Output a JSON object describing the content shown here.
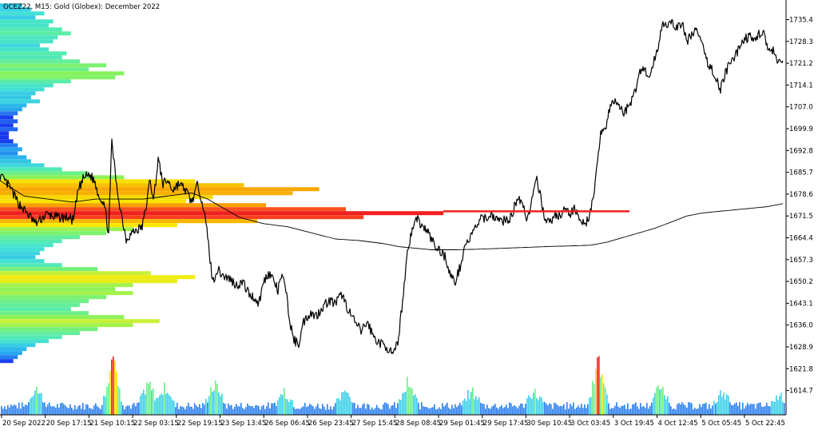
{
  "chart_data": {
    "type": "line",
    "title": "GCEZ22, M15:  Gold (Globex): December 2022",
    "xlabel": "",
    "ylabel": "",
    "ylim": [
      1607.5,
      1742.0
    ],
    "y_ticks": [
      1735.4,
      1728.3,
      1721.2,
      1714.1,
      1707.0,
      1699.9,
      1692.8,
      1685.7,
      1678.6,
      1671.5,
      1664.4,
      1657.3,
      1650.2,
      1643.1,
      1636.0,
      1628.9,
      1621.8,
      1614.7
    ],
    "x_ticks": [
      "20 Sep 2022",
      "20 Sep 17:15",
      "21 Sep 10:15",
      "22 Sep 03:15",
      "22 Sep 19:15",
      "23 Sep 13:45",
      "26 Sep 06:45",
      "26 Sep 23:45",
      "27 Sep 15:45",
      "28 Sep 08:45",
      "29 Sep 01:45",
      "29 Sep 17:45",
      "30 Sep 10:45",
      "3 Oct 03:45",
      "3 Oct 19:45",
      "4 Oct 12:45",
      "5 Oct 05:45",
      "5 Oct 22:45"
    ],
    "grid": false,
    "series": [
      {
        "role": "price",
        "color": "#000000",
        "anchors": [
          [
            0,
            1684.5
          ],
          [
            12,
            1681
          ],
          [
            22,
            1676
          ],
          [
            35,
            1672
          ],
          [
            45,
            1669
          ],
          [
            58,
            1672
          ],
          [
            72,
            1671
          ],
          [
            85,
            1671
          ],
          [
            92,
            1670
          ],
          [
            98,
            1680
          ],
          [
            105,
            1684
          ],
          [
            112,
            1685
          ],
          [
            118,
            1683
          ],
          [
            124,
            1678
          ],
          [
            130,
            1676
          ],
          [
            136,
            1666
          ],
          [
            140,
            1696
          ],
          [
            146,
            1681
          ],
          [
            152,
            1672
          ],
          [
            158,
            1664
          ],
          [
            165,
            1666
          ],
          [
            172,
            1667
          ],
          [
            178,
            1668
          ],
          [
            184,
            1676
          ],
          [
            188,
            1684
          ],
          [
            192,
            1676
          ],
          [
            198,
            1690
          ],
          [
            204,
            1682
          ],
          [
            210,
            1683
          ],
          [
            216,
            1680
          ],
          [
            224,
            1682
          ],
          [
            232,
            1680
          ],
          [
            240,
            1676
          ],
          [
            248,
            1682
          ],
          [
            254,
            1675
          ],
          [
            260,
            1665
          ],
          [
            266,
            1650
          ],
          [
            272,
            1654
          ],
          [
            280,
            1652
          ],
          [
            288,
            1651
          ],
          [
            296,
            1649
          ],
          [
            304,
            1650
          ],
          [
            312,
            1646
          ],
          [
            318,
            1645
          ],
          [
            324,
            1643
          ],
          [
            330,
            1650
          ],
          [
            336,
            1653
          ],
          [
            342,
            1651
          ],
          [
            348,
            1647
          ],
          [
            352,
            1652
          ],
          [
            358,
            1648
          ],
          [
            362,
            1638
          ],
          [
            368,
            1631
          ],
          [
            374,
            1630
          ],
          [
            380,
            1637
          ],
          [
            388,
            1640
          ],
          [
            396,
            1639
          ],
          [
            404,
            1642
          ],
          [
            412,
            1644
          ],
          [
            420,
            1643
          ],
          [
            428,
            1646
          ],
          [
            436,
            1641
          ],
          [
            444,
            1637
          ],
          [
            452,
            1634
          ],
          [
            460,
            1637
          ],
          [
            468,
            1632
          ],
          [
            476,
            1630
          ],
          [
            484,
            1629
          ],
          [
            492,
            1626
          ],
          [
            498,
            1630
          ],
          [
            504,
            1644
          ],
          [
            510,
            1660
          ],
          [
            516,
            1667
          ],
          [
            522,
            1671
          ],
          [
            528,
            1668
          ],
          [
            534,
            1667
          ],
          [
            540,
            1664
          ],
          [
            546,
            1661
          ],
          [
            552,
            1660
          ],
          [
            558,
            1658
          ],
          [
            564,
            1652
          ],
          [
            570,
            1650
          ],
          [
            576,
            1655
          ],
          [
            582,
            1662
          ],
          [
            588,
            1664
          ],
          [
            594,
            1667
          ],
          [
            600,
            1670
          ],
          [
            608,
            1671
          ],
          [
            616,
            1672
          ],
          [
            624,
            1670
          ],
          [
            632,
            1670
          ],
          [
            640,
            1671
          ],
          [
            648,
            1678
          ],
          [
            654,
            1676
          ],
          [
            660,
            1670
          ],
          [
            666,
            1677
          ],
          [
            672,
            1683
          ],
          [
            678,
            1676
          ],
          [
            684,
            1669
          ],
          [
            690,
            1670
          ],
          [
            696,
            1672
          ],
          [
            702,
            1671
          ],
          [
            708,
            1674
          ],
          [
            714,
            1672
          ],
          [
            720,
            1674
          ],
          [
            726,
            1671
          ],
          [
            732,
            1668
          ],
          [
            738,
            1672
          ],
          [
            744,
            1678
          ],
          [
            748,
            1690
          ],
          [
            752,
            1699
          ],
          [
            758,
            1700
          ],
          [
            764,
            1707
          ],
          [
            770,
            1709
          ],
          [
            776,
            1707
          ],
          [
            782,
            1705
          ],
          [
            788,
            1708
          ],
          [
            794,
            1711
          ],
          [
            800,
            1718
          ],
          [
            806,
            1720
          ],
          [
            812,
            1716
          ],
          [
            818,
            1721
          ],
          [
            824,
            1727
          ],
          [
            830,
            1735
          ],
          [
            836,
            1733
          ],
          [
            842,
            1734
          ],
          [
            848,
            1733
          ],
          [
            854,
            1734
          ],
          [
            860,
            1728
          ],
          [
            866,
            1731
          ],
          [
            872,
            1732
          ],
          [
            878,
            1728
          ],
          [
            884,
            1722
          ],
          [
            890,
            1720
          ],
          [
            896,
            1716
          ],
          [
            902,
            1713
          ],
          [
            908,
            1718
          ],
          [
            914,
            1721
          ],
          [
            920,
            1723
          ],
          [
            926,
            1727
          ],
          [
            932,
            1729
          ],
          [
            938,
            1730
          ],
          [
            944,
            1728
          ],
          [
            950,
            1731
          ],
          [
            956,
            1731
          ],
          [
            962,
            1725
          ],
          [
            968,
            1725
          ],
          [
            974,
            1721
          ],
          [
            980,
            1722
          ]
        ]
      },
      {
        "role": "moving-average",
        "color": "#000000",
        "anchors": [
          [
            0,
            1683
          ],
          [
            30,
            1678
          ],
          [
            60,
            1677
          ],
          [
            90,
            1676
          ],
          [
            120,
            1677
          ],
          [
            150,
            1677
          ],
          [
            180,
            1677
          ],
          [
            210,
            1678
          ],
          [
            240,
            1679
          ],
          [
            260,
            1677
          ],
          [
            280,
            1674
          ],
          [
            300,
            1671
          ],
          [
            330,
            1669
          ],
          [
            360,
            1668
          ],
          [
            390,
            1666
          ],
          [
            420,
            1664
          ],
          [
            450,
            1663.5
          ],
          [
            480,
            1662.5
          ],
          [
            500,
            1661.5
          ],
          [
            520,
            1661
          ],
          [
            540,
            1660.5
          ],
          [
            570,
            1660.5
          ],
          [
            600,
            1660.7
          ],
          [
            630,
            1661
          ],
          [
            660,
            1661.3
          ],
          [
            690,
            1661.6
          ],
          [
            720,
            1661.8
          ],
          [
            740,
            1662
          ],
          [
            760,
            1663
          ],
          [
            780,
            1664.5
          ],
          [
            800,
            1666
          ],
          [
            820,
            1667.5
          ],
          [
            840,
            1669.5
          ],
          [
            860,
            1671.5
          ],
          [
            880,
            1672.5
          ],
          [
            900,
            1673
          ],
          [
            920,
            1673.5
          ],
          [
            940,
            1674
          ],
          [
            960,
            1674.5
          ],
          [
            980,
            1675.5
          ]
        ]
      }
    ],
    "volume_profile": {
      "poc": 1673.0,
      "value_area": [
        1635.5,
        1680.0
      ],
      "bins": [
        [
          1740.0,
          5,
          "#34c8e4"
        ],
        [
          1738.7,
          7,
          "#3ad0e8"
        ],
        [
          1737.4,
          10,
          "#42e0d4"
        ],
        [
          1736.1,
          8,
          "#38cce6"
        ],
        [
          1734.8,
          12,
          "#48e4c8"
        ],
        [
          1733.5,
          11,
          "#44e2cc"
        ],
        [
          1732.2,
          14,
          "#54eab4"
        ],
        [
          1730.9,
          16,
          "#5aeca6"
        ],
        [
          1729.6,
          13,
          "#4ee6c0"
        ],
        [
          1728.3,
          12,
          "#48e4c8"
        ],
        [
          1727.0,
          9,
          "#3ed6dc"
        ],
        [
          1725.7,
          11,
          "#44e2cc"
        ],
        [
          1724.4,
          15,
          "#56ebae"
        ],
        [
          1723.1,
          14,
          "#52e8b8"
        ],
        [
          1721.8,
          18,
          "#62ee9a"
        ],
        [
          1720.5,
          24,
          "#7cf270"
        ],
        [
          1719.2,
          20,
          "#6cf086"
        ],
        [
          1717.9,
          28,
          "#86f25e"
        ],
        [
          1716.6,
          26,
          "#82f266"
        ],
        [
          1715.3,
          16,
          "#5aeca6"
        ],
        [
          1714.0,
          12,
          "#48e4c8"
        ],
        [
          1712.7,
          10,
          "#42e0d4"
        ],
        [
          1711.4,
          8,
          "#38cce6"
        ],
        [
          1710.1,
          7,
          "#34c8e4"
        ],
        [
          1708.8,
          9,
          "#3cd4e0"
        ],
        [
          1707.5,
          6,
          "#2cb8ea"
        ],
        [
          1706.2,
          5,
          "#2aa8ee"
        ],
        [
          1704.9,
          4,
          "#2878f0"
        ],
        [
          1703.6,
          3,
          "#1a40ee"
        ],
        [
          1702.3,
          4,
          "#2060f0"
        ],
        [
          1701.0,
          3,
          "#1a40ee"
        ],
        [
          1699.7,
          4,
          "#2268f0"
        ],
        [
          1698.4,
          2,
          "#1a3aee"
        ],
        [
          1697.1,
          2,
          "#1838ee"
        ],
        [
          1695.8,
          3,
          "#1a40ee"
        ],
        [
          1694.5,
          4,
          "#2480f0"
        ],
        [
          1693.2,
          5,
          "#2aa4ee"
        ],
        [
          1691.9,
          4,
          "#2490f0"
        ],
        [
          1690.6,
          6,
          "#2eb4ea"
        ],
        [
          1689.3,
          7,
          "#34c4e4"
        ],
        [
          1688.0,
          10,
          "#3ed8dc"
        ],
        [
          1686.7,
          14,
          "#52e8b8"
        ],
        [
          1685.4,
          20,
          "#6cf086"
        ],
        [
          1684.1,
          28,
          "#8ef258"
        ],
        [
          1682.8,
          44,
          "#f8e000"
        ],
        [
          1681.5,
          55,
          "#f8c000"
        ],
        [
          1680.2,
          72,
          "#f8a800"
        ],
        [
          1678.9,
          66,
          "#f8b000"
        ],
        [
          1677.6,
          48,
          "#f8d800"
        ],
        [
          1676.3,
          42,
          "#f8e400"
        ],
        [
          1675.0,
          60,
          "#f8a000"
        ],
        [
          1673.7,
          78,
          "#f85020"
        ],
        [
          1672.4,
          100,
          "#f02020"
        ],
        [
          1671.1,
          82,
          "#f84020"
        ],
        [
          1669.8,
          58,
          "#f8b800"
        ],
        [
          1668.5,
          40,
          "#f8e800"
        ],
        [
          1667.2,
          30,
          "#9cf250"
        ],
        [
          1665.9,
          24,
          "#7cf270"
        ],
        [
          1664.6,
          18,
          "#62ee9a"
        ],
        [
          1663.3,
          14,
          "#54eab4"
        ],
        [
          1662.0,
          12,
          "#48e4c8"
        ],
        [
          1660.7,
          10,
          "#42e0d4"
        ],
        [
          1659.4,
          9,
          "#3cd4e0"
        ],
        [
          1658.1,
          8,
          "#38cce6"
        ],
        [
          1656.8,
          10,
          "#42e0d4"
        ],
        [
          1655.5,
          14,
          "#54eab4"
        ],
        [
          1654.2,
          22,
          "#74f07a"
        ],
        [
          1652.9,
          34,
          "#c8f03a"
        ],
        [
          1651.6,
          44,
          "#f0ec10"
        ],
        [
          1650.3,
          40,
          "#e8ec18"
        ],
        [
          1649.0,
          30,
          "#a4f24a"
        ],
        [
          1647.7,
          26,
          "#8ef258"
        ],
        [
          1646.4,
          30,
          "#a4f24a"
        ],
        [
          1645.1,
          24,
          "#7cf270"
        ],
        [
          1643.8,
          20,
          "#6cf086"
        ],
        [
          1642.5,
          18,
          "#62ee9a"
        ],
        [
          1641.2,
          16,
          "#5aeca6"
        ],
        [
          1639.9,
          20,
          "#6cf086"
        ],
        [
          1638.6,
          28,
          "#8ef258"
        ],
        [
          1637.3,
          36,
          "#c8f03a"
        ],
        [
          1636.0,
          30,
          "#a4f24a"
        ],
        [
          1634.7,
          22,
          "#74f07a"
        ],
        [
          1633.4,
          18,
          "#62ee9a"
        ],
        [
          1632.1,
          14,
          "#54eab4"
        ],
        [
          1630.8,
          11,
          "#44e2cc"
        ],
        [
          1629.5,
          8,
          "#38cce6"
        ],
        [
          1628.2,
          6,
          "#2cb8ea"
        ],
        [
          1626.9,
          5,
          "#2aa8ee"
        ],
        [
          1625.6,
          4,
          "#2480f0"
        ],
        [
          1624.3,
          3,
          "#1a40ee"
        ]
      ]
    },
    "volume": {
      "color_scale": [
        "#2a7ff0",
        "#3ad0e8",
        "#6cf086",
        "#f8e000",
        "#f02020"
      ],
      "clusters": [
        [
          45,
          0.35
        ],
        [
          140,
          0.95
        ],
        [
          185,
          0.45
        ],
        [
          205,
          0.4
        ],
        [
          268,
          0.45
        ],
        [
          355,
          0.3
        ],
        [
          432,
          0.3
        ],
        [
          510,
          0.45
        ],
        [
          590,
          0.3
        ],
        [
          668,
          0.3
        ],
        [
          748,
          0.85
        ],
        [
          826,
          0.4
        ],
        [
          905,
          0.3
        ],
        [
          975,
          0.25
        ]
      ]
    }
  }
}
